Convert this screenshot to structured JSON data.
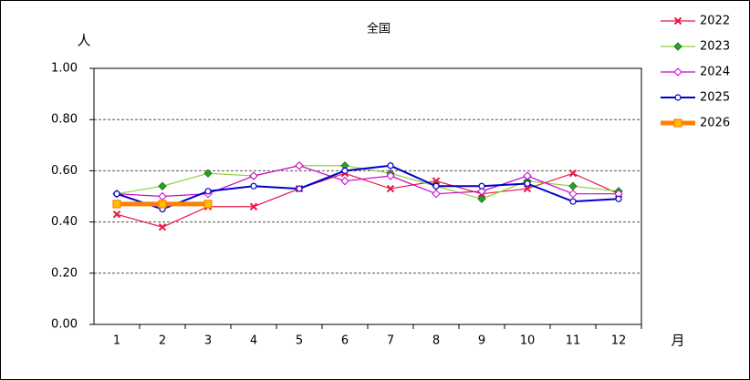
{
  "chart_data": {
    "type": "line",
    "title": "全国",
    "y_label": "人",
    "x_label": "月",
    "categories": [
      "1",
      "2",
      "3",
      "4",
      "5",
      "6",
      "7",
      "8",
      "9",
      "10",
      "11",
      "12"
    ],
    "ylim": [
      0,
      1
    ],
    "yticks": [
      {
        "value": 0,
        "label": "0.00"
      },
      {
        "value": 0.2,
        "label": "0.20"
      },
      {
        "value": 0.4,
        "label": "0.40"
      },
      {
        "value": 0.6,
        "label": "0.60"
      },
      {
        "value": 0.8,
        "label": "0.80"
      },
      {
        "value": 1,
        "label": "1.00"
      }
    ],
    "grid": true,
    "legend": "right",
    "series": [
      {
        "name": "2022",
        "color": "#e8174a",
        "marker": "x",
        "values": [
          0.43,
          0.38,
          0.46,
          0.46,
          0.53,
          0.59,
          0.53,
          0.56,
          0.51,
          0.53,
          0.59,
          0.51
        ]
      },
      {
        "name": "2023",
        "color": "#8fd13f",
        "marker": "diamond",
        "values": [
          0.51,
          0.54,
          0.59,
          0.58,
          0.62,
          0.62,
          0.59,
          0.54,
          0.49,
          0.56,
          0.54,
          0.52
        ]
      },
      {
        "name": "2024",
        "color": "#cc00cc",
        "marker": "open-diamond",
        "values": [
          0.51,
          0.5,
          0.51,
          0.58,
          0.62,
          0.56,
          0.58,
          0.51,
          0.52,
          0.58,
          0.51,
          0.51
        ]
      },
      {
        "name": "2025",
        "color": "#0000cc",
        "marker": "open-circle",
        "values": [
          0.51,
          0.45,
          0.52,
          0.54,
          0.53,
          0.6,
          0.62,
          0.54,
          0.54,
          0.55,
          0.48,
          0.49
        ]
      },
      {
        "name": "2026",
        "color": "#ff7f00",
        "marker": "square",
        "values": [
          0.47,
          0.47,
          0.47,
          null,
          null,
          null,
          null,
          null,
          null,
          null,
          null,
          null
        ]
      }
    ]
  }
}
